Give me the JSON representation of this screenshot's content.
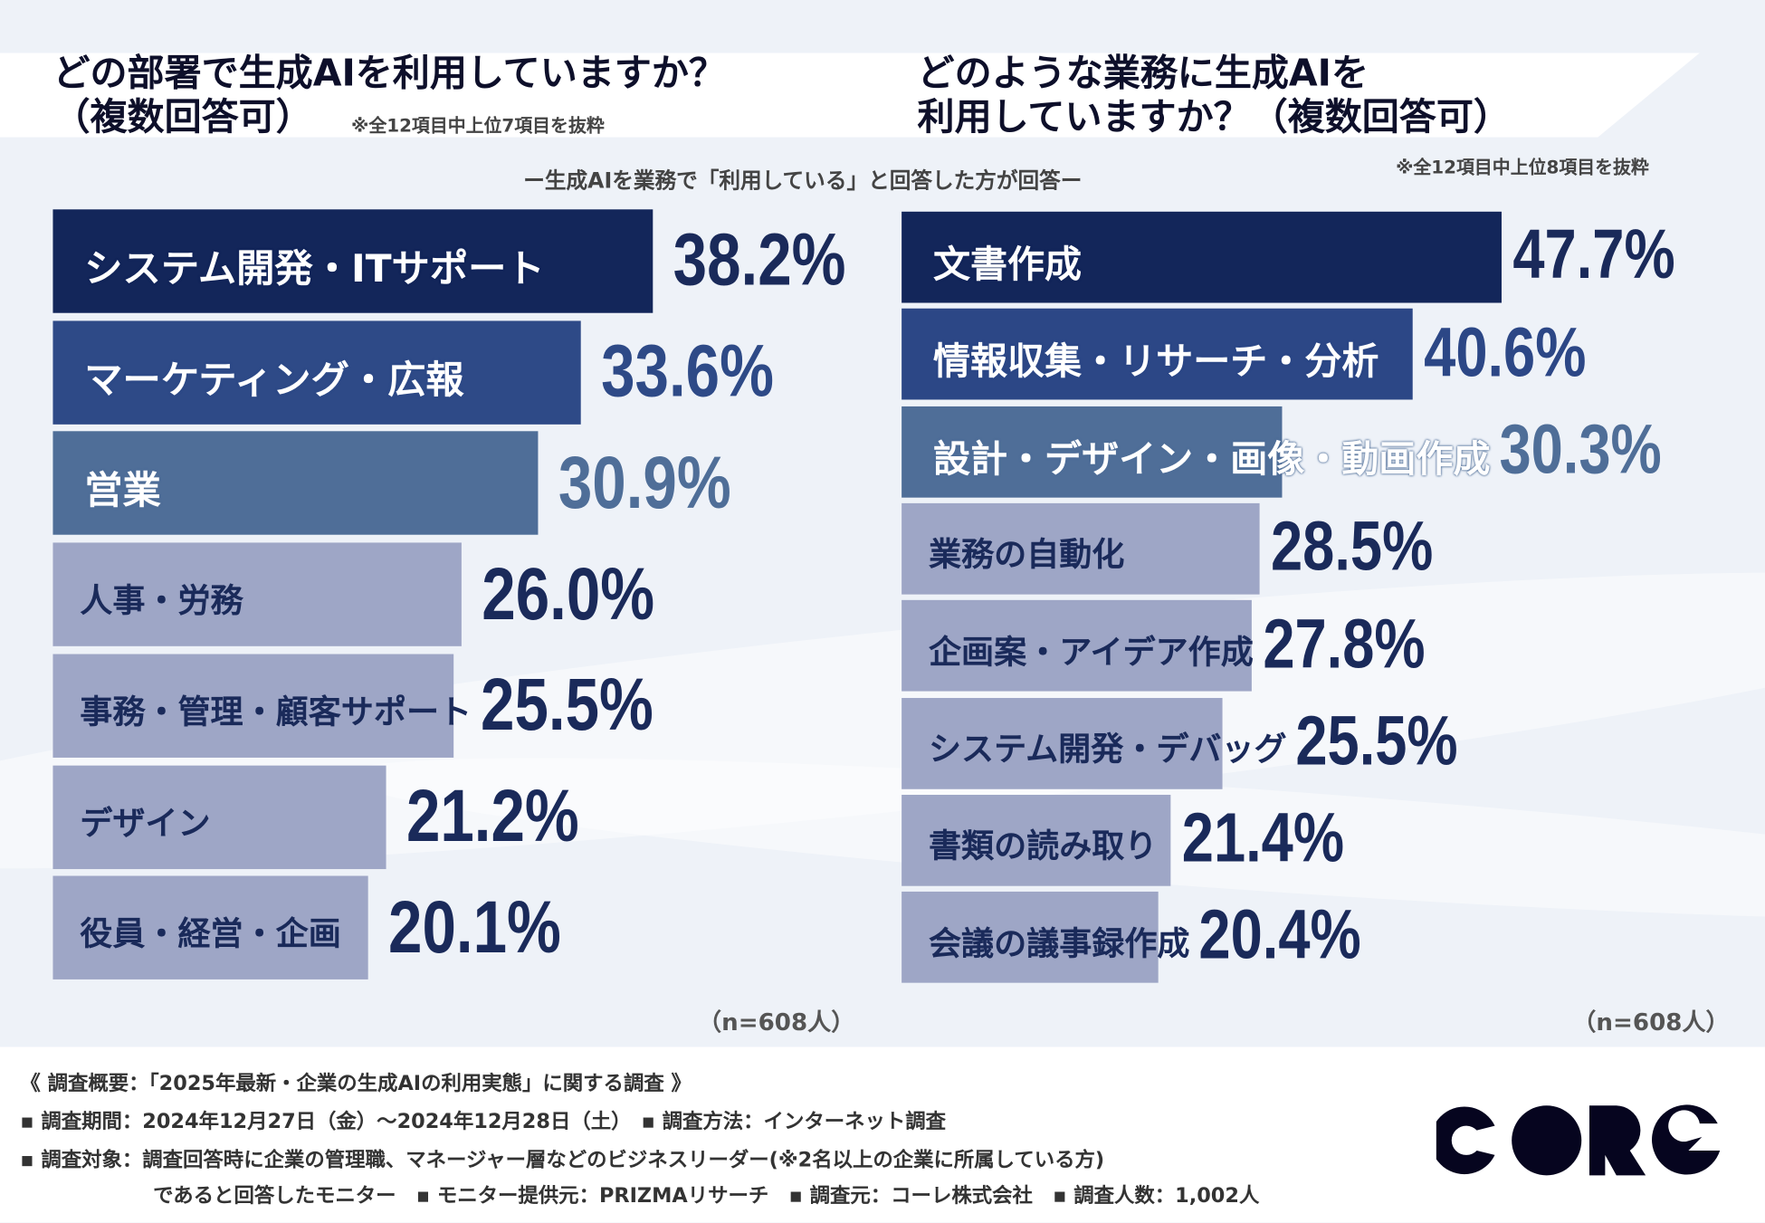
{
  "left": {
    "title_line1": "どの部署で生成AIを利用していますか？",
    "title_line2": "（複数回答可）",
    "note": "※全12項目中上位7項目を抜粋",
    "n": "（n=608人）"
  },
  "right": {
    "title_line1": "どのような業務に生成AIを",
    "title_line2": "利用していますか？（複数回答可）",
    "note": "※全12項目中上位8項目を抜粋",
    "n": "（n=608人）"
  },
  "subtitle": "ー生成AIを業務で「利用している」と回答した方が回答ー",
  "chart_data": [
    {
      "type": "bar",
      "orientation": "horizontal",
      "title": "どの部署で生成AIを利用していますか？（複数回答可）",
      "unit": "%",
      "categories": [
        "システム開発・ITサポート",
        "マーケティング・広報",
        "営業",
        "人事・労務",
        "事務・管理・顧客サポート",
        "デザイン",
        "役員・経営・企画"
      ],
      "values": [
        38.2,
        33.6,
        30.9,
        26.0,
        25.5,
        21.2,
        20.1
      ],
      "labels": [
        "38.2%",
        "33.6%",
        "30.9%",
        "26.0%",
        "25.5%",
        "21.2%",
        "20.1%"
      ],
      "colors": [
        "#13265a",
        "#2e4a87",
        "#4f6e98",
        "#9ea6c6",
        "#9ea6c6",
        "#9ea6c6",
        "#9ea6c6"
      ],
      "n": 608
    },
    {
      "type": "bar",
      "orientation": "horizontal",
      "title": "どのような業務に生成AIを利用していますか？（複数回答可）",
      "unit": "%",
      "categories": [
        "文書作成",
        "情報収集・リサーチ・分析",
        "設計・デザイン・画像・動画作成",
        "業務の自動化",
        "企画案・アイデア作成",
        "システム開発・デバッグ",
        "書類の読み取り",
        "会議の議事録作成"
      ],
      "values": [
        47.7,
        40.6,
        30.3,
        28.5,
        27.8,
        25.5,
        21.4,
        20.4
      ],
      "labels": [
        "47.7%",
        "40.6%",
        "30.3%",
        "28.5%",
        "27.8%",
        "25.5%",
        "21.4%",
        "20.4%"
      ],
      "colors": [
        "#13265a",
        "#2c4786",
        "#4f6e98",
        "#9ea6c6",
        "#9ea6c6",
        "#9ea6c6",
        "#9ea6c6",
        "#9ea6c6"
      ],
      "n": 608
    }
  ],
  "footer": {
    "line1": "《 調査概要：「2025年最新・企業の生成AIの利用実態」に関する調査 》",
    "line2": "▪ 調査期間：2024年12月27日（金）〜2024年12月28日（土）　▪ 調査方法：インターネット調査",
    "line3": "▪ 調査対象：調査回答時に企業の管理職、マネージャー層などのビジネスリーダー(※2名以上の企業に所属している方)",
    "line4": "であると回答したモニター　▪ モニター提供元：PRIZMAリサーチ　▪ 調査元：コーレ株式会社　▪ 調査人数：1,002人",
    "logo_text": "CORE"
  }
}
